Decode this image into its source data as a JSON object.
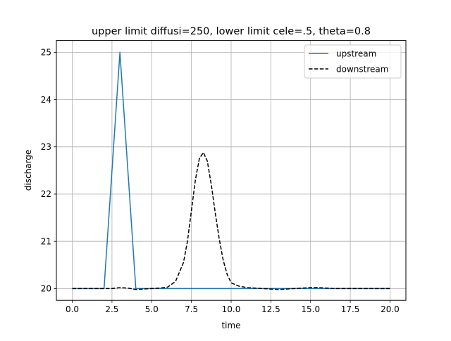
{
  "chart_data": {
    "type": "line",
    "title": "upper limit diffusi=250, lower limit cele=.5, theta=0.8",
    "xlabel": "time",
    "ylabel": "discharge",
    "xlim": [
      -1.0,
      21.0
    ],
    "ylim": [
      19.75,
      25.25
    ],
    "xticks": [
      0.0,
      2.5,
      5.0,
      7.5,
      10.0,
      12.5,
      15.0,
      17.5,
      20.0
    ],
    "xtick_labels": [
      "0.0",
      "2.5",
      "5.0",
      "7.5",
      "10.0",
      "12.5",
      "15.0",
      "17.5",
      "20.0"
    ],
    "yticks": [
      20,
      21,
      22,
      23,
      24,
      25
    ],
    "ytick_labels": [
      "20",
      "21",
      "22",
      "23",
      "24",
      "25"
    ],
    "grid": true,
    "legend_position": "top-right",
    "series": [
      {
        "name": "upstream",
        "color": "#1f77b4",
        "style": "solid",
        "x": [
          0,
          1,
          2,
          3,
          4,
          5,
          6,
          7,
          8,
          9,
          10,
          11,
          12,
          13,
          14,
          15,
          16,
          17,
          18,
          19,
          20
        ],
        "y": [
          20,
          20,
          20,
          25,
          20,
          20,
          20,
          20,
          20,
          20,
          20,
          20,
          20,
          20,
          20,
          20,
          20,
          20,
          20,
          20,
          20
        ]
      },
      {
        "name": "downstream",
        "color": "#000000",
        "style": "dashed",
        "x": [
          0,
          0.5,
          1,
          1.5,
          2,
          2.5,
          3,
          3.5,
          4,
          4.5,
          5,
          5.5,
          6,
          6.5,
          7,
          7.25,
          7.5,
          7.75,
          8,
          8.25,
          8.5,
          8.75,
          9,
          9.25,
          9.5,
          9.75,
          10,
          10.5,
          11,
          11.5,
          12,
          12.5,
          13,
          13.5,
          14,
          14.5,
          15,
          15.5,
          16,
          16.5,
          17,
          17.5,
          18,
          18.5,
          19,
          19.5,
          20
        ],
        "y": [
          20.0,
          20.0,
          20.0,
          20.0,
          20.0,
          20.0,
          20.02,
          20.01,
          19.98,
          19.99,
          20.0,
          20.01,
          20.03,
          20.15,
          20.55,
          21.0,
          21.65,
          22.3,
          22.75,
          22.88,
          22.7,
          22.2,
          21.6,
          21.05,
          20.6,
          20.3,
          20.12,
          20.05,
          20.02,
          20.01,
          20.0,
          19.99,
          19.98,
          19.99,
          20.0,
          20.01,
          20.02,
          20.02,
          20.01,
          20.0,
          20.0,
          20.0,
          20.0,
          20.0,
          20.0,
          20.0,
          20.0
        ]
      }
    ]
  }
}
